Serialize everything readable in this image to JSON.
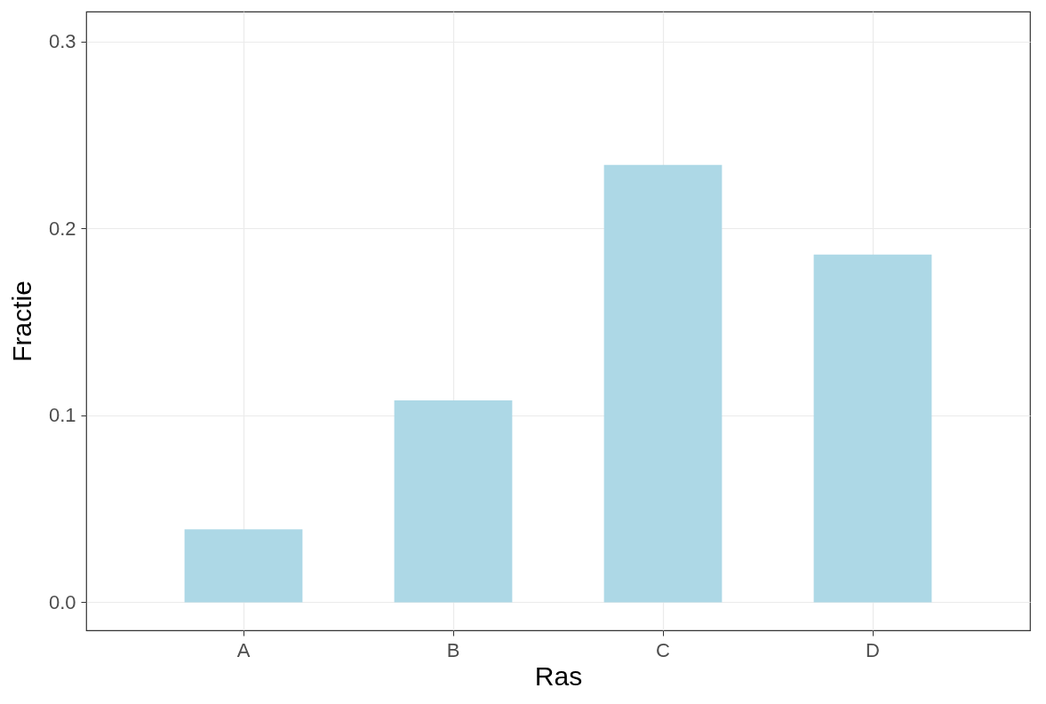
{
  "chart_data": {
    "type": "bar",
    "xlabel": "Ras",
    "ylabel": "Fractie",
    "categories": [
      "A",
      "B",
      "C",
      "D"
    ],
    "values": [
      0.039,
      0.108,
      0.234,
      0.186
    ],
    "color": "#add8e6",
    "ylim": [
      -0.015,
      0.316
    ],
    "yticks": [
      {
        "value": 0,
        "label": "0.0"
      },
      0.1,
      0.2,
      0.3
    ],
    "grid": true
  }
}
